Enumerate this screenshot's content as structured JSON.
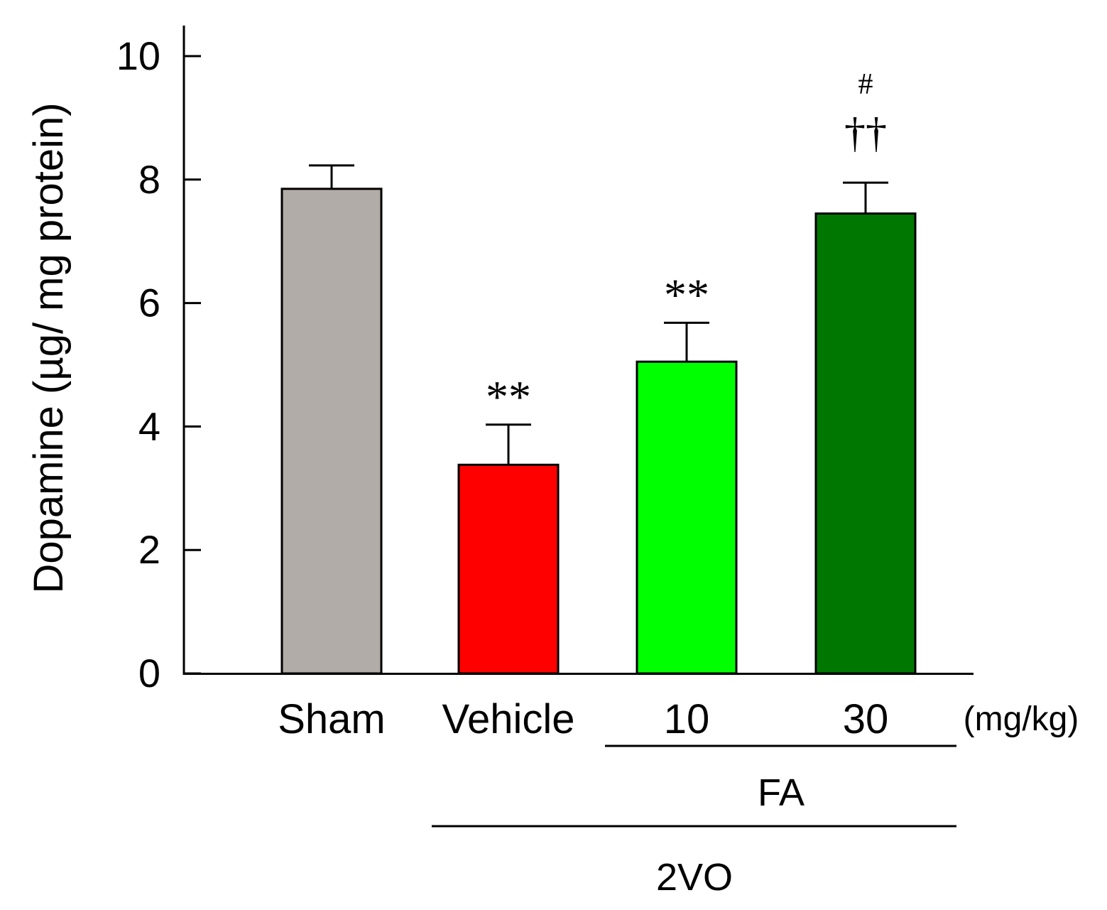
{
  "chart_data": {
    "type": "bar",
    "title": "",
    "ylabel": "Dopamine (µg/ mg protein)",
    "xlabel": "",
    "ylim": [
      0,
      10
    ],
    "yticks": [
      "0",
      "2",
      "4",
      "6",
      "8",
      "10"
    ],
    "categories": [
      "Sham",
      "Vehicle",
      "10",
      "30"
    ],
    "values": [
      7.85,
      3.38,
      5.05,
      7.45
    ],
    "errors": [
      0.38,
      0.65,
      0.63,
      0.5
    ],
    "colors": [
      "#b1aca7",
      "#ff0000",
      "#00ff00",
      "#007700"
    ],
    "significance": [
      {
        "bar": 1,
        "labels": [
          "**"
        ]
      },
      {
        "bar": 2,
        "labels": [
          "**"
        ]
      },
      {
        "bar": 3,
        "labels": [
          "††",
          "#"
        ]
      }
    ],
    "unit_label": "(mg/kg)",
    "groups": [
      {
        "label": "FA",
        "spans": [
          2,
          3
        ]
      },
      {
        "label": "2VO",
        "spans": [
          1,
          3
        ]
      }
    ]
  }
}
